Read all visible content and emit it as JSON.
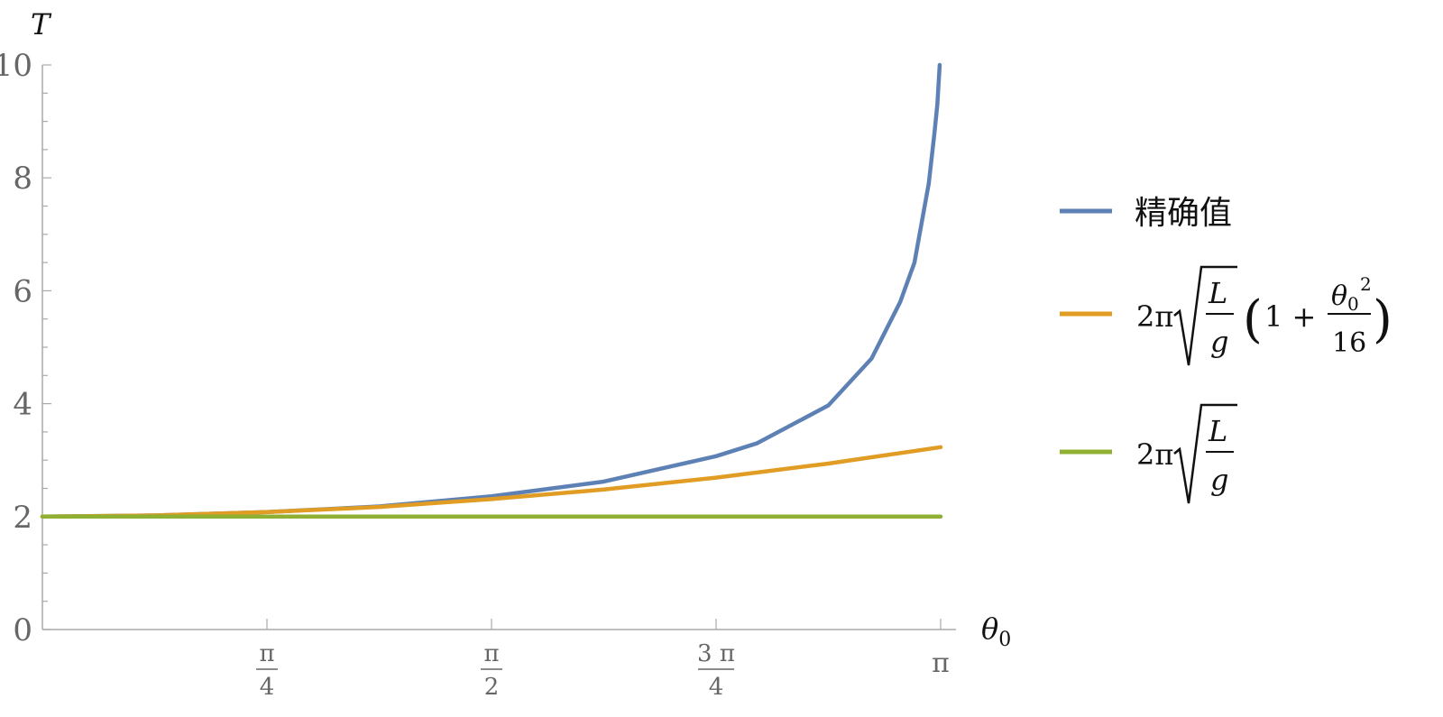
{
  "chart_data": {
    "type": "line",
    "xlabel": "θ",
    "xlabel_sub": "0",
    "ylabel": "T",
    "xlim": [
      0,
      3.14159
    ],
    "ylim": [
      0,
      10
    ],
    "x_ticks": [
      {
        "value": 0.785398,
        "num": "π",
        "den": "4"
      },
      {
        "value": 1.570796,
        "num": "π",
        "den": "2"
      },
      {
        "value": 2.356194,
        "num": "3 π",
        "den": "4"
      },
      {
        "value": 3.141593,
        "num": "π",
        "den": ""
      }
    ],
    "y_ticks": [
      "0",
      "2",
      "4",
      "6",
      "8",
      "10"
    ],
    "legend_position": "right",
    "series": [
      {
        "name": "精确值",
        "color": "#5e81b5",
        "x": [
          0.0,
          0.3927,
          0.7854,
          1.1781,
          1.5708,
          1.9635,
          2.3562,
          2.5,
          2.7489,
          2.9,
          3.0,
          3.05,
          3.1,
          3.12,
          3.13,
          3.1382
        ],
        "y": [
          2.0,
          2.02,
          2.08,
          2.18,
          2.36,
          2.62,
          3.07,
          3.3,
          3.97,
          4.8,
          5.8,
          6.5,
          7.9,
          8.8,
          9.3,
          10.0
        ]
      },
      {
        "name_parts": [
          "2π",
          "L",
          "g",
          "1 + ",
          "θ",
          "0",
          "2",
          "16"
        ],
        "color": "#e19c24",
        "x": [
          0.0,
          0.3927,
          0.7854,
          1.1781,
          1.5708,
          1.9635,
          2.3562,
          2.7489,
          3.14159
        ],
        "y": [
          2.0,
          2.02,
          2.08,
          2.17,
          2.31,
          2.48,
          2.69,
          2.94,
          3.23
        ]
      },
      {
        "name_parts": [
          "2π",
          "L",
          "g"
        ],
        "color": "#8fb032",
        "x": [
          0.0,
          3.14159
        ],
        "y": [
          2.0,
          2.0
        ]
      }
    ]
  }
}
